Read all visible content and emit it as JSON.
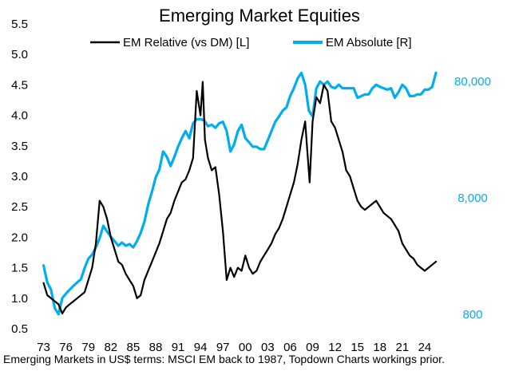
{
  "chart_data": {
    "type": "line",
    "title": "Emerging Market Equities",
    "source_note": "Emerging Markets in US$ terms: MSCI EM back to 1987, Topdown Charts workings prior.",
    "x_tick_labels": [
      "73",
      "76",
      "79",
      "82",
      "85",
      "88",
      "91",
      "94",
      "97",
      "00",
      "03",
      "06",
      "09",
      "12",
      "15",
      "18",
      "21",
      "24"
    ],
    "x_tick_years": [
      1973,
      1976,
      1979,
      1982,
      1985,
      1988,
      1991,
      1994,
      1997,
      2000,
      2003,
      2006,
      2009,
      2012,
      2015,
      2018,
      2021,
      2024
    ],
    "xlim": [
      1972.3,
      2027.0
    ],
    "left_axis": {
      "label": "",
      "ylim": [
        0.5,
        5.5
      ],
      "ticks": [
        "0.5",
        "1.0",
        "1.5",
        "2.0",
        "2.5",
        "3.0",
        "3.5",
        "4.0",
        "4.5",
        "5.0",
        "5.5"
      ]
    },
    "right_axis": {
      "label": "",
      "scale": "log",
      "ylim": [
        600,
        250000
      ],
      "ticks": [
        "800",
        "8,000",
        "80,000"
      ]
    },
    "colors": {
      "relative": "#000000",
      "absolute": "#00AEEF",
      "right_tick_text": "#00AEEF"
    },
    "series": [
      {
        "name": "EM Relative (vs DM) [L]",
        "axis": "left",
        "x": [
          1973.0,
          1973.5,
          1974.0,
          1974.5,
          1975.0,
          1975.5,
          1976.0,
          1976.5,
          1977.0,
          1977.5,
          1978.0,
          1978.5,
          1979.0,
          1979.5,
          1980.0,
          1980.5,
          1981.0,
          1981.5,
          1982.0,
          1982.5,
          1983.0,
          1983.5,
          1984.0,
          1984.5,
          1985.0,
          1985.5,
          1986.0,
          1986.5,
          1987.0,
          1987.5,
          1988.0,
          1988.5,
          1989.0,
          1989.5,
          1990.0,
          1990.5,
          1991.0,
          1991.5,
          1992.0,
          1992.5,
          1993.0,
          1993.5,
          1994.0,
          1994.3,
          1994.6,
          1995.0,
          1995.5,
          1996.0,
          1996.5,
          1997.0,
          1997.5,
          1998.0,
          1998.5,
          1999.0,
          1999.5,
          2000.0,
          2000.5,
          2001.0,
          2001.5,
          2002.0,
          2002.5,
          2003.0,
          2003.5,
          2004.0,
          2004.5,
          2005.0,
          2005.5,
          2006.0,
          2006.5,
          2007.0,
          2007.5,
          2008.0,
          2008.3,
          2008.6,
          2009.0,
          2009.5,
          2010.0,
          2010.5,
          2011.0,
          2011.5,
          2012.0,
          2012.5,
          2013.0,
          2013.5,
          2014.0,
          2014.5,
          2015.0,
          2015.5,
          2016.0,
          2016.5,
          2017.0,
          2017.5,
          2018.0,
          2018.5,
          2019.0,
          2019.5,
          2020.0,
          2020.5,
          2021.0,
          2021.5,
          2022.0,
          2022.5,
          2023.0,
          2023.5,
          2024.0,
          2024.5,
          2025.0,
          2025.5
        ],
        "values": [
          1.25,
          1.05,
          1.0,
          0.95,
          0.9,
          0.75,
          0.85,
          0.9,
          0.95,
          1.0,
          1.05,
          1.1,
          1.3,
          1.5,
          1.9,
          2.6,
          2.5,
          2.3,
          2.0,
          1.8,
          1.6,
          1.55,
          1.4,
          1.3,
          1.2,
          1.0,
          1.05,
          1.3,
          1.45,
          1.6,
          1.75,
          1.9,
          2.1,
          2.3,
          2.4,
          2.6,
          2.75,
          2.9,
          2.95,
          3.1,
          3.3,
          4.4,
          4.0,
          4.55,
          3.6,
          3.3,
          3.1,
          3.15,
          2.7,
          2.1,
          1.3,
          1.5,
          1.35,
          1.5,
          1.45,
          1.7,
          1.5,
          1.4,
          1.45,
          1.6,
          1.7,
          1.8,
          1.9,
          2.05,
          2.15,
          2.3,
          2.5,
          2.7,
          2.9,
          3.2,
          3.6,
          3.9,
          3.4,
          2.9,
          3.9,
          4.3,
          4.2,
          4.5,
          4.4,
          3.9,
          3.8,
          3.6,
          3.4,
          3.1,
          3.0,
          2.8,
          2.6,
          2.5,
          2.45,
          2.5,
          2.55,
          2.6,
          2.5,
          2.4,
          2.35,
          2.3,
          2.2,
          2.1,
          1.9,
          1.8,
          1.7,
          1.65,
          1.55,
          1.5,
          1.45,
          1.5,
          1.55,
          1.6
        ]
      },
      {
        "name": "EM Absolute [R]",
        "axis": "right",
        "x": [
          1973.0,
          1973.5,
          1974.0,
          1974.5,
          1975.0,
          1975.5,
          1976.0,
          1976.5,
          1977.0,
          1977.5,
          1978.0,
          1978.5,
          1979.0,
          1979.5,
          1980.0,
          1980.5,
          1981.0,
          1981.5,
          1982.0,
          1982.5,
          1983.0,
          1983.5,
          1984.0,
          1984.5,
          1985.0,
          1985.5,
          1986.0,
          1986.5,
          1987.0,
          1987.5,
          1988.0,
          1988.5,
          1989.0,
          1989.5,
          1990.0,
          1990.5,
          1991.0,
          1991.5,
          1992.0,
          1992.5,
          1993.0,
          1993.5,
          1994.0,
          1994.5,
          1995.0,
          1995.5,
          1996.0,
          1996.5,
          1997.0,
          1997.5,
          1998.0,
          1998.5,
          1999.0,
          1999.5,
          2000.0,
          2000.5,
          2001.0,
          2001.5,
          2002.0,
          2002.5,
          2003.0,
          2003.5,
          2004.0,
          2004.5,
          2005.0,
          2005.5,
          2006.0,
          2006.5,
          2007.0,
          2007.5,
          2008.0,
          2008.5,
          2009.0,
          2009.5,
          2010.0,
          2010.5,
          2011.0,
          2011.5,
          2012.0,
          2012.5,
          2013.0,
          2013.5,
          2014.0,
          2014.5,
          2015.0,
          2015.5,
          2016.0,
          2016.5,
          2017.0,
          2017.5,
          2018.0,
          2018.5,
          2019.0,
          2019.5,
          2020.0,
          2020.5,
          2021.0,
          2021.5,
          2022.0,
          2022.5,
          2023.0,
          2023.5,
          2024.0,
          2024.5,
          2025.0,
          2025.5
        ],
        "values": [
          2100,
          1500,
          1300,
          900,
          800,
          1100,
          1200,
          1300,
          1400,
          1500,
          1600,
          2000,
          2400,
          2600,
          3000,
          3600,
          4600,
          4100,
          3700,
          3400,
          3100,
          3300,
          3100,
          3200,
          3000,
          3400,
          4000,
          5000,
          7000,
          9000,
          12000,
          14000,
          20000,
          18000,
          15000,
          18000,
          22000,
          26000,
          30000,
          26000,
          35000,
          38000,
          38000,
          37000,
          33000,
          34000,
          32000,
          35000,
          36000,
          30000,
          20000,
          23000,
          30000,
          34000,
          26000,
          24000,
          22000,
          22000,
          21000,
          21000,
          25000,
          30000,
          36000,
          40000,
          45000,
          48000,
          60000,
          70000,
          85000,
          95000,
          75000,
          45000,
          40000,
          70000,
          80000,
          75000,
          80000,
          72000,
          70000,
          75000,
          70000,
          70000,
          70000,
          70000,
          58000,
          60000,
          62000,
          62000,
          70000,
          75000,
          72000,
          70000,
          68000,
          70000,
          58000,
          65000,
          75000,
          70000,
          60000,
          60000,
          62000,
          62000,
          68000,
          68000,
          72000,
          95000
        ]
      }
    ]
  }
}
